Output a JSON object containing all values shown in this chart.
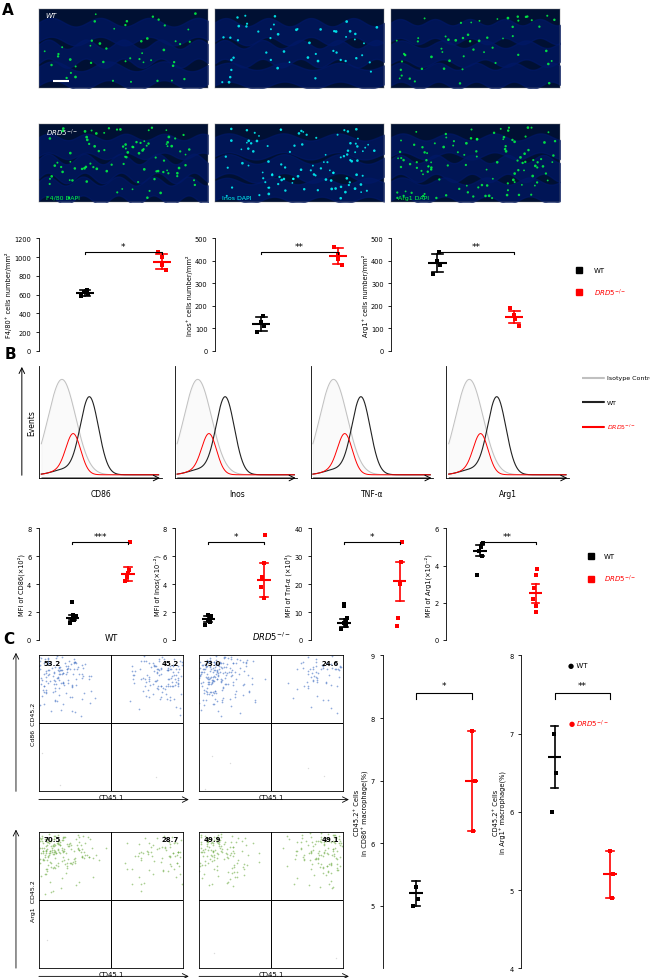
{
  "panel_A_label": "A",
  "panel_B_label": "B",
  "panel_C_label": "C",
  "microscopy_labels": [
    "F4/80 DAPI",
    "Inos DAPI",
    "Arg1 DAPI"
  ],
  "wt_label": "WT",
  "drd5_label": "DRD5⁻/⁻",
  "panelA_plots": {
    "f480": {
      "ylabel": "F4/80⁺ cells number/mm²",
      "ylim": [
        0,
        1200
      ],
      "yticks": [
        0,
        200,
        400,
        600,
        800,
        1000,
        1200
      ],
      "wt_mean": 620,
      "wt_err": 30,
      "wt_points": [
        590,
        610,
        630,
        650
      ],
      "drd5_mean": 950,
      "drd5_err": 80,
      "drd5_points": [
        860,
        920,
        1000,
        1050
      ],
      "sig": "*"
    },
    "inos": {
      "ylabel": "Inos⁺ cells number/mm²",
      "ylim": [
        0,
        500
      ],
      "yticks": [
        0,
        100,
        200,
        300,
        400,
        500
      ],
      "wt_mean": 120,
      "wt_err": 30,
      "wt_points": [
        85,
        110,
        130,
        155
      ],
      "drd5_mean": 420,
      "drd5_err": 35,
      "drd5_points": [
        380,
        410,
        430,
        460
      ],
      "sig": "**"
    },
    "arg1": {
      "ylabel": "Arg1⁺ cells number/mm²",
      "ylim": [
        0,
        500
      ],
      "yticks": [
        0,
        100,
        200,
        300,
        400,
        500
      ],
      "wt_mean": 390,
      "wt_err": 40,
      "wt_points": [
        340,
        380,
        400,
        440
      ],
      "drd5_mean": 150,
      "drd5_err": 25,
      "drd5_points": [
        110,
        140,
        160,
        190
      ],
      "sig": "**"
    }
  },
  "panelB_flow_labels": [
    "CD86",
    "Inos",
    "TNF-α",
    "Arg1"
  ],
  "panelB_legend": [
    "Isotype Control",
    "WT",
    "DRD5⁻/⁻"
  ],
  "panelB_plots": {
    "cd86": {
      "ylabel": "MFI of CD86(×10²)",
      "ylim": [
        0,
        8
      ],
      "yticks": [
        0,
        2,
        4,
        6,
        8
      ],
      "wt_mean": 1.6,
      "wt_err": 0.2,
      "wt_points": [
        1.2,
        1.4,
        1.5,
        1.6,
        1.7,
        1.8,
        2.7
      ],
      "drd5_mean": 4.7,
      "drd5_err": 0.5,
      "drd5_points": [
        4.2,
        4.5,
        4.8,
        5.0,
        7.0
      ],
      "sig": "***"
    },
    "inos": {
      "ylabel": "MFI of Inos(×10⁻²)",
      "ylim": [
        0,
        8
      ],
      "yticks": [
        0,
        2,
        4,
        6,
        8
      ],
      "wt_mean": 1.5,
      "wt_err": 0.2,
      "wt_points": [
        1.1,
        1.3,
        1.4,
        1.6,
        1.7,
        1.8
      ],
      "drd5_mean": 4.3,
      "drd5_err": 1.2,
      "drd5_points": [
        3.0,
        3.8,
        4.5,
        5.5,
        7.5
      ],
      "sig": "*"
    },
    "tnfa": {
      "ylabel": "MFI of Tnf-α (×10³)",
      "ylim": [
        0,
        40
      ],
      "yticks": [
        0,
        10,
        20,
        30,
        40
      ],
      "wt_mean": 6,
      "wt_err": 1.5,
      "wt_points": [
        4,
        5,
        6,
        7,
        8,
        12,
        13
      ],
      "drd5_mean": 21,
      "drd5_err": 7,
      "drd5_points": [
        5,
        8,
        20,
        28,
        35
      ],
      "sig": "*"
    },
    "arg1": {
      "ylabel": "MFI of Arg1(×10⁻²)",
      "ylim": [
        0,
        6
      ],
      "yticks": [
        0,
        2,
        4,
        6
      ],
      "wt_mean": 4.8,
      "wt_err": 0.3,
      "wt_points": [
        3.5,
        4.5,
        4.8,
        5.0,
        5.2
      ],
      "drd5_mean": 2.5,
      "drd5_err": 0.5,
      "drd5_points": [
        1.5,
        1.8,
        2.2,
        2.8,
        3.5,
        3.8
      ],
      "sig": "**"
    }
  },
  "panelC_scatter_top": {
    "wt_numbers": [
      "53.2",
      "45.2"
    ],
    "drd5_numbers": [
      "73.0",
      "24.6"
    ],
    "xlabel": "CD45.1",
    "ylabel": "Cd86  CD45.2"
  },
  "panelC_scatter_bottom": {
    "wt_numbers": [
      "70.5",
      "28.7"
    ],
    "drd5_numbers": [
      "49.9",
      "49.1"
    ],
    "xlabel": "CD45.1",
    "ylabel": "Arg1  CD45.2"
  },
  "panelC_plots": {
    "cd86": {
      "ylabel": "CD45.2⁺ Cells\nin CD86⁺ macrophage(%)",
      "ylim": [
        4,
        9
      ],
      "yticks": [
        5,
        6,
        7,
        8,
        9
      ],
      "wt_mean": 5.2,
      "wt_err": 0.2,
      "wt_points": [
        5.0,
        5.1,
        5.3
      ],
      "drd5_mean": 7.0,
      "drd5_err": 0.8,
      "drd5_points": [
        6.2,
        7.0,
        7.8
      ],
      "sig": "*"
    },
    "arg1": {
      "ylabel": "CD45.2⁺ Cells\nin Arg1⁺ macrophage(%)",
      "ylim": [
        4,
        8
      ],
      "yticks": [
        4,
        5,
        6,
        7,
        8
      ],
      "wt_mean": 6.7,
      "wt_err": 0.4,
      "wt_points": [
        6.0,
        6.5,
        7.0
      ],
      "drd5_mean": 5.2,
      "drd5_err": 0.3,
      "drd5_points": [
        4.9,
        5.2,
        5.5
      ],
      "sig": "**"
    }
  },
  "colors": {
    "wt": "#000000",
    "drd5": "#FF0000",
    "isotype": "#C0C0C0",
    "flow_wt": "#1a1a1a",
    "flow_drd5": "#FF0000",
    "scatter_wt_blue": "#4472C4",
    "scatter_drd5_blue": "#4472C4",
    "scatter_wt_green": "#70AD47",
    "scatter_drd5_green": "#70AD47"
  }
}
